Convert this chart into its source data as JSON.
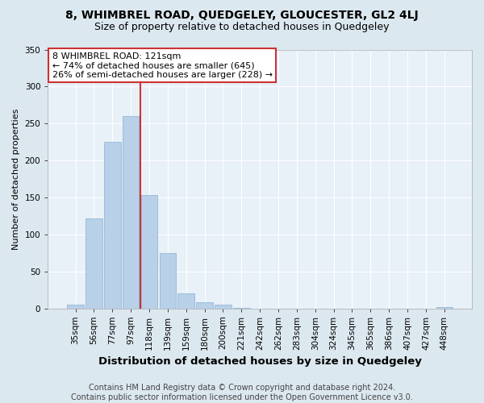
{
  "title": "8, WHIMBREL ROAD, QUEDGELEY, GLOUCESTER, GL2 4LJ",
  "subtitle": "Size of property relative to detached houses in Quedgeley",
  "xlabel": "Distribution of detached houses by size in Quedgeley",
  "ylabel": "Number of detached properties",
  "footer_line1": "Contains HM Land Registry data © Crown copyright and database right 2024.",
  "footer_line2": "Contains public sector information licensed under the Open Government Licence v3.0.",
  "bar_labels": [
    "35sqm",
    "56sqm",
    "77sqm",
    "97sqm",
    "118sqm",
    "139sqm",
    "159sqm",
    "180sqm",
    "200sqm",
    "221sqm",
    "242sqm",
    "262sqm",
    "283sqm",
    "304sqm",
    "324sqm",
    "345sqm",
    "365sqm",
    "386sqm",
    "407sqm",
    "427sqm",
    "448sqm"
  ],
  "bar_values": [
    5,
    122,
    225,
    260,
    153,
    75,
    20,
    8,
    5,
    1,
    0,
    0,
    0,
    0,
    0,
    0,
    0,
    0,
    0,
    0,
    2
  ],
  "bar_color": "#b8d0e8",
  "bar_edgecolor": "#8ab0d0",
  "highlight_color": "#cc3333",
  "vline_index": 4,
  "annotation_text": "8 WHIMBREL ROAD: 121sqm\n← 74% of detached houses are smaller (645)\n26% of semi-detached houses are larger (228) →",
  "annotation_box_facecolor": "#ffffff",
  "annotation_box_edgecolor": "#cc3333",
  "ylim": [
    0,
    350
  ],
  "yticks": [
    0,
    50,
    100,
    150,
    200,
    250,
    300,
    350
  ],
  "background_color": "#dce8f0",
  "plot_bg_color": "#e8f0f8",
  "grid_color": "#ffffff",
  "title_fontsize": 10,
  "subtitle_fontsize": 9,
  "xlabel_fontsize": 9.5,
  "ylabel_fontsize": 8,
  "tick_fontsize": 7.5,
  "annotation_fontsize": 8,
  "footer_fontsize": 7
}
